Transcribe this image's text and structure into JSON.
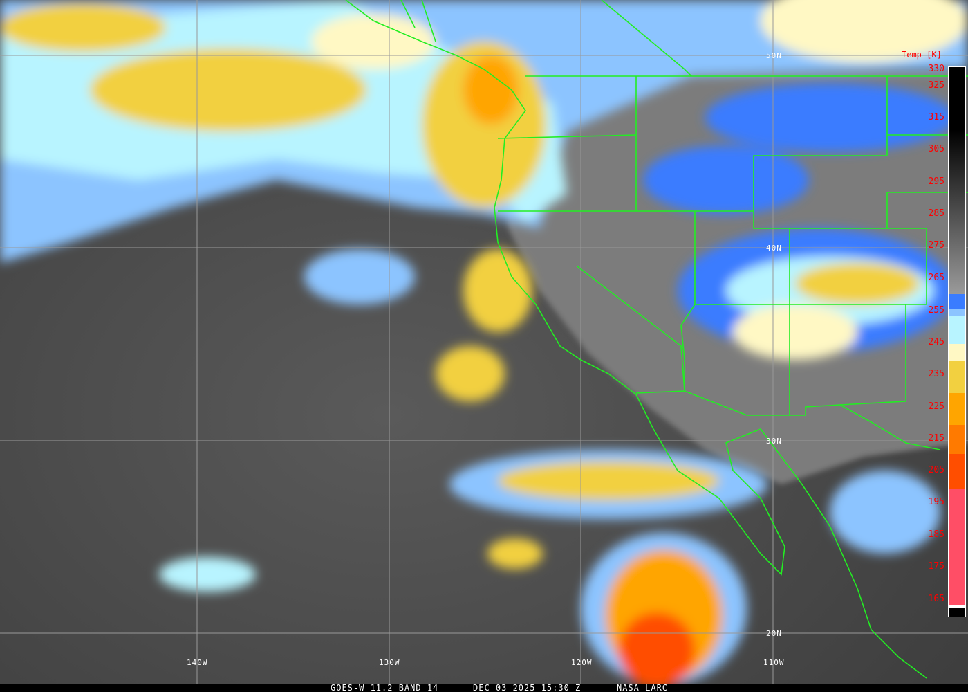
{
  "product": {
    "satellite_label": "GOES-W 11.2 BAND 14",
    "datetime_label": "DEC 03 2025 15:30 Z",
    "credit_label": "NASA LARC"
  },
  "grid": {
    "longitude_labels": [
      "140W",
      "130W",
      "120W",
      "110W"
    ],
    "latitude_labels": [
      "50N",
      "40N",
      "30N",
      "20N"
    ]
  },
  "colorbar": {
    "title": "Temp [K]",
    "tick_labels": [
      "330",
      "325",
      "315",
      "305",
      "295",
      "285",
      "275",
      "265",
      "255",
      "245",
      "235",
      "225",
      "215",
      "205",
      "195",
      "185",
      "175",
      "165"
    ],
    "colors": {
      "warm_top": "#000000",
      "warm_bottom": "#9a9a9a",
      "blue": "#3a7cff",
      "light_blue": "#8cc4ff",
      "pale_cyan": "#b8f4ff",
      "cream": "#fff8c4",
      "yellow": "#f2d040",
      "orange": "#ffa500",
      "dark_orange": "#ff7a00",
      "red_orange": "#ff4e00",
      "pink": "#ff4e66"
    }
  },
  "overlay_colors": {
    "boundaries": "#22ee22",
    "grid": "#999999"
  }
}
